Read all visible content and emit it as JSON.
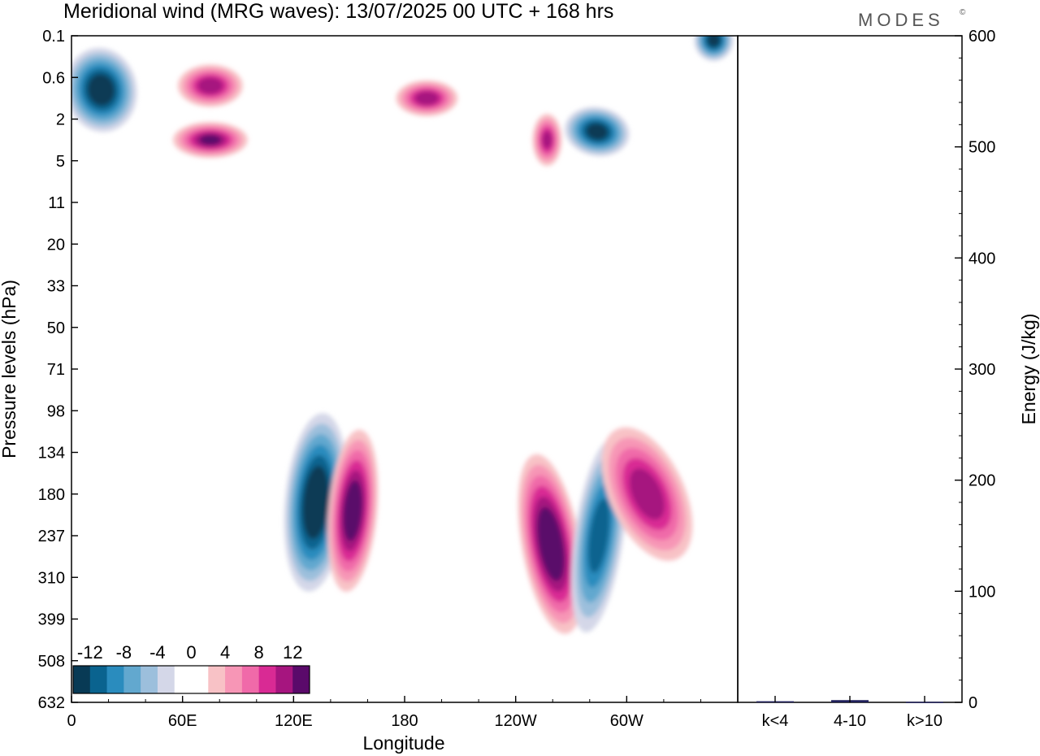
{
  "chart_data": [
    {
      "type": "heatmap",
      "title": "Meridional wind (MRG waves):  13/07/2025  00 UTC  + 168 hrs",
      "brand": "MODES",
      "brand_mark": "©",
      "xlabel": "Longitude",
      "ylabel": "Pressure levels (hPa)",
      "x_ticks": [
        "0",
        "60E",
        "120E",
        "180",
        "120W",
        "60W"
      ],
      "x_tick_degrees": [
        0,
        60,
        120,
        180,
        240,
        300
      ],
      "xlim": [
        0,
        360
      ],
      "y_ticks": [
        "0.1",
        "0.6",
        "2",
        "5",
        "11",
        "20",
        "33",
        "50",
        "71",
        "98",
        "134",
        "180",
        "237",
        "310",
        "399",
        "508",
        "632"
      ],
      "colorbar": {
        "labels": [
          "-12",
          "-8",
          "-4",
          "0",
          "4",
          "8",
          "12"
        ],
        "levels": [
          -14,
          -12,
          -10,
          -8,
          -6,
          -4,
          -2,
          0,
          2,
          4,
          6,
          8,
          10,
          12,
          14
        ],
        "colors": [
          "#083a55",
          "#0a638f",
          "#2a8cbe",
          "#62a8cf",
          "#9cbfdc",
          "#d4d7e8",
          "#ffffff",
          "#ffffff",
          "#f8c2c6",
          "#f796b6",
          "#f06aa9",
          "#d92a94",
          "#a6157f",
          "#5a0a6a"
        ]
      },
      "features": [
        {
          "lon": 16,
          "level_index": 1.3,
          "value": -14,
          "description": "upper negative core near 15E"
        },
        {
          "lon": 75,
          "level_index": 1.2,
          "value": 11
        },
        {
          "lon": 75,
          "level_index": 2.5,
          "value": 12
        },
        {
          "lon": 192,
          "level_index": 1.5,
          "value": 11
        },
        {
          "lon": 257,
          "level_index": 2.5,
          "value": 10
        },
        {
          "lon": 284,
          "level_index": 2.3,
          "value": -13
        },
        {
          "lon": 347,
          "level_index": 0.1,
          "value": -13
        },
        {
          "lon": 132,
          "level_index": 11.2,
          "value": -15,
          "description": "negative core near 130E"
        },
        {
          "lon": 152,
          "level_index": 11.4,
          "value": 14,
          "description": "positive core near 150E"
        },
        {
          "lon": 259,
          "level_index": 12.2,
          "value": 15,
          "description": "positive core near 100W"
        },
        {
          "lon": 285,
          "level_index": 12.0,
          "value": -11,
          "description": "negative core near 75W"
        },
        {
          "lon": 311,
          "level_index": 11.0,
          "value": 11,
          "description": "positive core near 50W"
        }
      ]
    },
    {
      "type": "bar",
      "ylabel": "Energy (J/kg)",
      "categories": [
        "k<4",
        "4-10",
        "k>10"
      ],
      "values": [
        1,
        2,
        0.5
      ],
      "ylim": [
        0,
        600
      ],
      "y_ticks": [
        "0",
        "100",
        "200",
        "300",
        "400",
        "500",
        "600"
      ],
      "y_tick_values": [
        0,
        100,
        200,
        300,
        400,
        500,
        600
      ],
      "bar_color": "#1f1f5a"
    }
  ]
}
